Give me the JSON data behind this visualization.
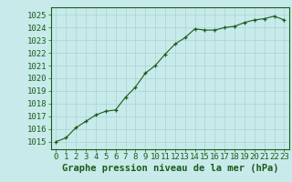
{
  "x": [
    0,
    1,
    2,
    3,
    4,
    5,
    6,
    7,
    8,
    9,
    10,
    11,
    12,
    13,
    14,
    15,
    16,
    17,
    18,
    19,
    20,
    21,
    22,
    23
  ],
  "y": [
    1015.0,
    1015.3,
    1016.1,
    1016.6,
    1017.1,
    1017.4,
    1017.5,
    1018.5,
    1019.3,
    1020.4,
    1021.0,
    1021.9,
    1022.7,
    1023.2,
    1023.9,
    1023.8,
    1023.8,
    1024.0,
    1024.1,
    1024.4,
    1024.6,
    1024.7,
    1024.9,
    1024.6
  ],
  "line_color": "#1a5c1a",
  "marker_color": "#1a5c1a",
  "background_color": "#c8eaea",
  "grid_color": "#a8d4d4",
  "xlabel": "Graphe pression niveau de la mer (hPa)",
  "xlabel_color": "#1a5c1a",
  "xtick_labels": [
    "0",
    "1",
    "2",
    "3",
    "4",
    "5",
    "6",
    "7",
    "8",
    "9",
    "10",
    "11",
    "12",
    "13",
    "14",
    "15",
    "16",
    "17",
    "18",
    "19",
    "20",
    "21",
    "22",
    "23"
  ],
  "ytick_min": 1015,
  "ytick_max": 1025,
  "ylim": [
    1014.4,
    1025.6
  ],
  "xlim": [
    -0.5,
    23.5
  ],
  "tick_color": "#1a5c1a",
  "spine_color": "#1a5c1a",
  "fontsize_xlabel": 7.5,
  "fontsize_ticks": 6.5,
  "marker": "+"
}
